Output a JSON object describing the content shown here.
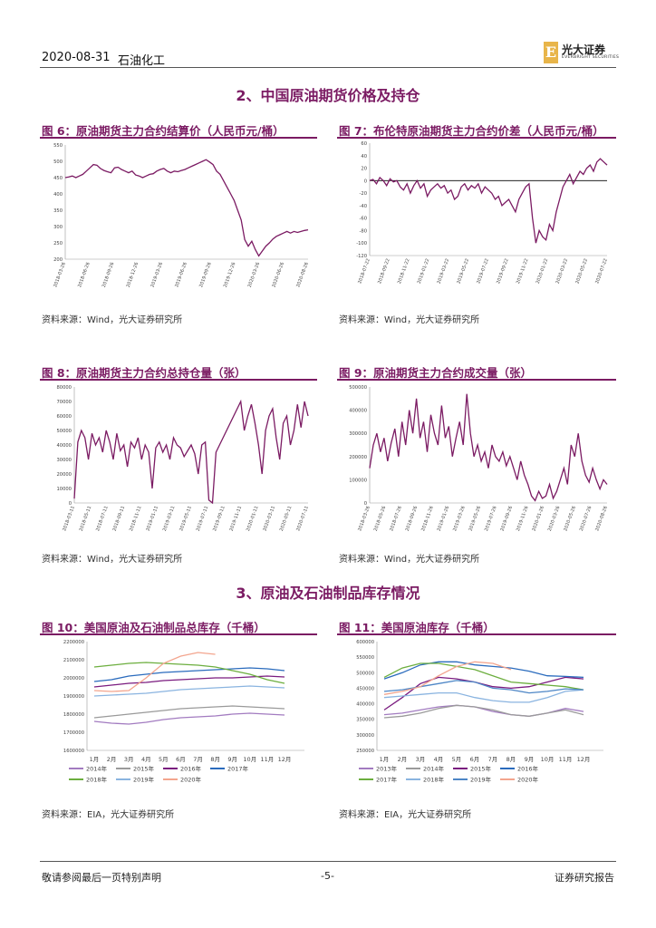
{
  "header": {
    "date": "2020-08-31",
    "sector": "石油化工",
    "logo_mark": "E",
    "logo_name": "光大证券",
    "logo_sub": "EVERBRIGHT SECURITIES"
  },
  "sections": {
    "s2": "2、中国原油期货价格及持仓",
    "s3": "3、原油及石油制品库存情况"
  },
  "figures": {
    "f6": {
      "title": "图 6：原油期货主力合约结算价（人民币元/桶）",
      "source": "资料来源：Wind，光大证券研究所"
    },
    "f7": {
      "title": "图 7：布伦特原油期货主力合约价差（人民币元/桶）",
      "source": "资料来源：Wind，光大证券研究所"
    },
    "f8": {
      "title": "图 8：原油期货主力合约总持仓量（张）",
      "source": "资料来源：Wind，光大证券研究所"
    },
    "f9": {
      "title": "图 9：原油期货主力合约成交量（张）",
      "source": "资料来源：Wind，光大证券研究所"
    },
    "f10": {
      "title": "图 10：美国原油及石油制品总库存（千桶）",
      "source": "资料来源：EIA，光大证券研究所"
    },
    "f11": {
      "title": "图 11：美国原油库存（千桶）",
      "source": "资料来源：EIA，光大证券研究所"
    }
  },
  "footer": {
    "left": "敬请参阅最后一页特别声明",
    "page": "-5-",
    "right": "证券研究报告"
  },
  "chart_data": [
    {
      "id": "f6",
      "type": "line",
      "color": "#7b1b63",
      "yticks": [
        "550",
        "500",
        "450",
        "400",
        "350",
        "300",
        "250",
        "200"
      ],
      "ylim": [
        200,
        550
      ],
      "xticks": [
        "2018-03-26",
        "2018-06-26",
        "2018-09-26",
        "2018-12-26",
        "2019-03-26",
        "2019-06-26",
        "2019-09-26",
        "2019-12-26",
        "2020-03-26",
        "2020-06-26",
        "2020-08-26"
      ],
      "values": [
        450,
        452,
        455,
        450,
        455,
        460,
        470,
        480,
        490,
        488,
        478,
        472,
        468,
        465,
        480,
        482,
        475,
        470,
        465,
        470,
        458,
        455,
        450,
        455,
        460,
        462,
        470,
        475,
        478,
        470,
        465,
        470,
        468,
        472,
        475,
        480,
        485,
        490,
        495,
        500,
        505,
        498,
        490,
        470,
        460,
        440,
        420,
        400,
        380,
        350,
        320,
        260,
        240,
        255,
        230,
        210,
        225,
        240,
        250,
        262,
        270,
        275,
        280,
        285,
        280,
        285,
        282,
        285,
        288,
        290
      ]
    },
    {
      "id": "f7",
      "type": "line",
      "color": "#7b1b63",
      "yticks": [
        "60",
        "40",
        "20",
        "0",
        "-20",
        "-40",
        "-60",
        "-80",
        "-100",
        "-120"
      ],
      "ylim": [
        -120,
        60
      ],
      "xticks": [
        "2018-07-22",
        "2018-09-22",
        "2018-11-22",
        "2019-01-22",
        "2019-03-22",
        "2019-05-22",
        "2019-07-22",
        "2019-09-22",
        "2019-11-22",
        "2020-01-22",
        "2020-03-22",
        "2020-05-22",
        "2020-07-22"
      ],
      "values": [
        0,
        2,
        -5,
        5,
        0,
        -8,
        3,
        -2,
        0,
        -10,
        -15,
        -5,
        -20,
        -8,
        0,
        -12,
        -5,
        -25,
        -15,
        -10,
        -5,
        -12,
        -8,
        -20,
        -15,
        -30,
        -25,
        -10,
        -5,
        -15,
        -8,
        -12,
        -5,
        -20,
        -10,
        -15,
        -20,
        -30,
        -25,
        -40,
        -35,
        -30,
        -40,
        -50,
        -30,
        -20,
        -10,
        -5,
        -60,
        -100,
        -80,
        -90,
        -95,
        -70,
        -80,
        -50,
        -30,
        -10,
        0,
        10,
        -5,
        5,
        15,
        10,
        20,
        25,
        15,
        30,
        35,
        30,
        25
      ]
    },
    {
      "id": "f8",
      "type": "line",
      "color": "#7b1b63",
      "yticks": [
        "80000",
        "70000",
        "60000",
        "50000",
        "40000",
        "30000",
        "20000",
        "10000",
        "0"
      ],
      "ylim": [
        0,
        80000
      ],
      "xticks": [
        "2018-03-11",
        "2018-05-11",
        "2018-07-11",
        "2018-09-11",
        "2018-11-11",
        "2019-01-11",
        "2019-03-11",
        "2019-05-11",
        "2019-07-11",
        "2019-09-11",
        "2019-11-11",
        "2020-01-11",
        "2020-03-11",
        "2020-05-11",
        "2020-07-11"
      ],
      "values": [
        3000,
        42000,
        50000,
        45000,
        30000,
        48000,
        40000,
        45000,
        35000,
        50000,
        42000,
        30000,
        48000,
        36000,
        40000,
        25000,
        42000,
        38000,
        45000,
        30000,
        40000,
        35000,
        10000,
        38000,
        42000,
        35000,
        40000,
        30000,
        45000,
        40000,
        38000,
        32000,
        36000,
        40000,
        34000,
        20000,
        40000,
        42000,
        2000,
        0,
        35000,
        40000,
        45000,
        50000,
        55000,
        60000,
        65000,
        70000,
        50000,
        60000,
        68000,
        55000,
        40000,
        20000,
        50000,
        60000,
        65000,
        45000,
        30000,
        55000,
        60000,
        40000,
        50000,
        68000,
        52000,
        70000,
        60000
      ]
    },
    {
      "id": "f9",
      "type": "line",
      "color": "#7b1b63",
      "yticks": [
        "500000",
        "400000",
        "300000",
        "200000",
        "100000",
        "0"
      ],
      "ylim": [
        0,
        500000
      ],
      "xticks": [
        "2018-03-26",
        "2018-05-26",
        "2018-07-26",
        "2018-09-26",
        "2018-11-26",
        "2019-01-26",
        "2019-03-26",
        "2019-05-26",
        "2019-07-26",
        "2019-09-26",
        "2019-11-26",
        "2020-01-26",
        "2020-03-26",
        "2020-05-26",
        "2020-07-26",
        "2020-08-26"
      ],
      "values": [
        150000,
        250000,
        300000,
        220000,
        280000,
        180000,
        260000,
        320000,
        200000,
        350000,
        250000,
        400000,
        300000,
        450000,
        280000,
        350000,
        220000,
        380000,
        300000,
        250000,
        420000,
        280000,
        330000,
        200000,
        280000,
        350000,
        250000,
        470000,
        300000,
        200000,
        250000,
        180000,
        220000,
        150000,
        250000,
        200000,
        180000,
        220000,
        160000,
        200000,
        150000,
        100000,
        180000,
        120000,
        80000,
        30000,
        10000,
        50000,
        20000,
        30000,
        80000,
        20000,
        50000,
        100000,
        150000,
        80000,
        250000,
        200000,
        300000,
        180000,
        120000,
        90000,
        150000,
        100000,
        60000,
        100000,
        80000
      ]
    },
    {
      "id": "f10",
      "type": "line",
      "yticks": [
        "2200000",
        "2100000",
        "2000000",
        "1900000",
        "1800000",
        "1700000",
        "1600000"
      ],
      "ylim": [
        1600000,
        2200000
      ],
      "xticks": [
        "1月",
        "2月",
        "3月",
        "4月",
        "5月",
        "6月",
        "7月",
        "8月",
        "9月",
        "10月",
        "11月",
        "12月"
      ],
      "series": [
        {
          "name": "2014年",
          "color": "#a27bc0",
          "values": [
            1760000,
            1750000,
            1745000,
            1755000,
            1770000,
            1780000,
            1785000,
            1790000,
            1800000,
            1805000,
            1800000,
            1795000
          ]
        },
        {
          "name": "2015年",
          "color": "#9a9a9a",
          "values": [
            1780000,
            1790000,
            1800000,
            1810000,
            1820000,
            1830000,
            1835000,
            1840000,
            1845000,
            1840000,
            1835000,
            1830000
          ]
        },
        {
          "name": "2016年",
          "color": "#7a1b7f",
          "values": [
            1950000,
            1960000,
            1970000,
            1975000,
            1985000,
            1990000,
            1995000,
            2000000,
            2000000,
            2005000,
            2010000,
            2005000
          ]
        },
        {
          "name": "2017年",
          "color": "#2a6bbd",
          "values": [
            1980000,
            1990000,
            2010000,
            2020000,
            2030000,
            2035000,
            2040000,
            2045000,
            2050000,
            2055000,
            2050000,
            2040000
          ]
        },
        {
          "name": "2018年",
          "color": "#6cae3e",
          "values": [
            2060000,
            2070000,
            2080000,
            2085000,
            2080000,
            2075000,
            2070000,
            2060000,
            2040000,
            2020000,
            1990000,
            1970000
          ]
        },
        {
          "name": "2019年",
          "color": "#8ab4e0",
          "values": [
            1900000,
            1905000,
            1910000,
            1915000,
            1925000,
            1935000,
            1940000,
            1945000,
            1950000,
            1955000,
            1950000,
            1945000
          ]
        },
        {
          "name": "2020年",
          "color": "#f3a58e",
          "values": [
            1930000,
            1925000,
            1930000,
            2000000,
            2080000,
            2120000,
            2140000,
            2130000,
            null,
            null,
            null,
            null
          ]
        }
      ]
    },
    {
      "id": "f11",
      "type": "line",
      "yticks": [
        "600000",
        "550000",
        "500000",
        "450000",
        "400000",
        "350000",
        "300000",
        "250000"
      ],
      "ylim": [
        250000,
        600000
      ],
      "xticks": [
        "1月",
        "2月",
        "3月",
        "4月",
        "5月",
        "6月",
        "7月",
        "8月",
        "9月",
        "10月",
        "11月",
        "12月"
      ],
      "series": [
        {
          "name": "2013年",
          "color": "#a27bc0",
          "values": [
            365000,
            370000,
            380000,
            390000,
            395000,
            390000,
            375000,
            365000,
            360000,
            370000,
            385000,
            375000
          ]
        },
        {
          "name": "2014年",
          "color": "#9a9a9a",
          "values": [
            355000,
            360000,
            370000,
            385000,
            395000,
            390000,
            380000,
            365000,
            360000,
            370000,
            380000,
            365000
          ]
        },
        {
          "name": "2015年",
          "color": "#7a1b7f",
          "values": [
            380000,
            420000,
            465000,
            485000,
            480000,
            470000,
            455000,
            450000,
            455000,
            470000,
            485000,
            480000
          ]
        },
        {
          "name": "2016年",
          "color": "#2a6bbd",
          "values": [
            480000,
            500000,
            525000,
            535000,
            535000,
            525000,
            520000,
            515000,
            505000,
            490000,
            488000,
            485000
          ]
        },
        {
          "name": "2017年",
          "color": "#6cae3e",
          "values": [
            485000,
            515000,
            530000,
            530000,
            520000,
            510000,
            490000,
            470000,
            465000,
            460000,
            455000,
            445000
          ]
        },
        {
          "name": "2018年",
          "color": "#8ab4e0",
          "values": [
            420000,
            425000,
            430000,
            435000,
            435000,
            420000,
            410000,
            405000,
            405000,
            420000,
            440000,
            445000
          ]
        },
        {
          "name": "2019年",
          "color": "#4d86c6",
          "values": [
            440000,
            445000,
            455000,
            465000,
            475000,
            470000,
            450000,
            445000,
            435000,
            440000,
            448000,
            445000
          ]
        },
        {
          "name": "2020年",
          "color": "#f3a58e",
          "values": [
            430000,
            440000,
            455000,
            490000,
            520000,
            535000,
            530000,
            510000,
            null,
            null,
            null,
            null
          ]
        }
      ]
    }
  ]
}
